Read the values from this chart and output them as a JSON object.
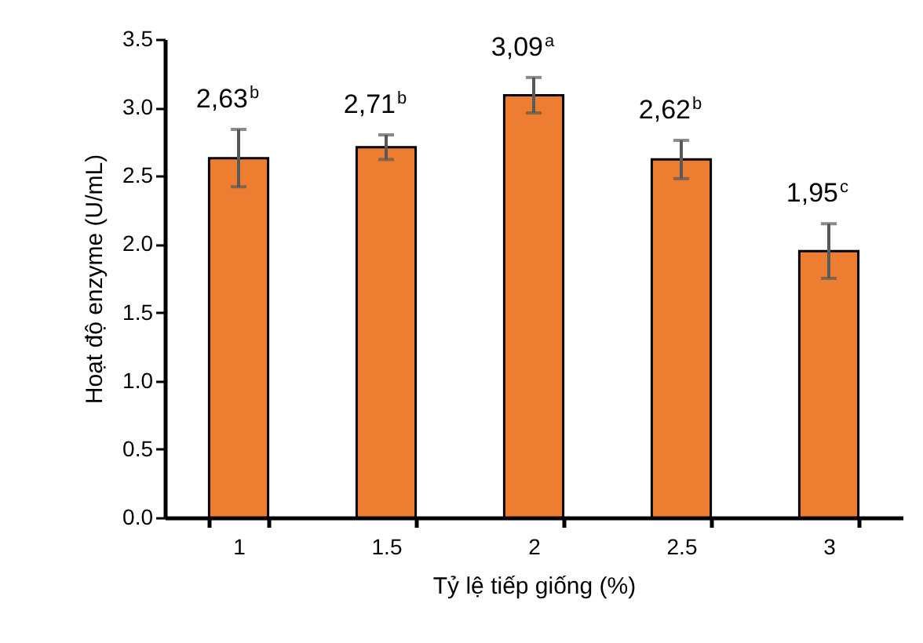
{
  "chart_data": {
    "type": "bar",
    "xlabel": "Tỷ lệ tiếp giống (%)",
    "ylabel": "Hoạt độ enzyme (U/mL)",
    "categories": [
      "1",
      "1.5",
      "2",
      "2.5",
      "3"
    ],
    "values": [
      2.63,
      2.71,
      3.09,
      2.62,
      1.95
    ],
    "errors": [
      0.21,
      0.09,
      0.13,
      0.14,
      0.2
    ],
    "value_labels": [
      "2,63$^{b}$",
      "2,71$^{b}$",
      "3,09$^{a}$",
      "2,62$^{b}$",
      "1,95$^{c}$"
    ],
    "color": "#ed7d31",
    "ylim": [
      0,
      3.5
    ],
    "yticks": [
      {
        "value": 0,
        "label": "0.0"
      },
      {
        "value": 0.5,
        "label": "0.5"
      },
      {
        "value": 1,
        "label": "1.0"
      },
      {
        "value": 1.5,
        "label": "1.5"
      },
      {
        "value": 2,
        "label": "2.0"
      },
      {
        "value": 2.5,
        "label": "2.5"
      },
      {
        "value": 3,
        "label": "3.0"
      },
      {
        "value": 3.5,
        "label": "3.5"
      }
    ],
    "grid": false
  }
}
